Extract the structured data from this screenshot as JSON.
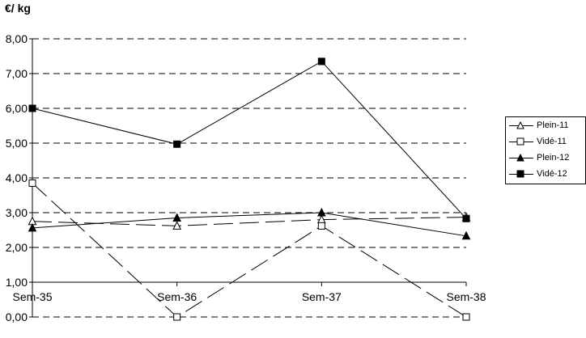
{
  "chart_data": {
    "type": "line",
    "ylabel": "€/ kg",
    "categories": [
      "Sem-35",
      "Sem-36",
      "Sem-37",
      "Sem-38"
    ],
    "ylim": [
      0,
      8
    ],
    "yticks": [
      "0,00",
      "1,00",
      "2,00",
      "3,00",
      "4,00",
      "5,00",
      "6,00",
      "7,00",
      "8,00"
    ],
    "x_axis_crosses_at": 1,
    "grid": true,
    "legend_position": "right",
    "series": [
      {
        "name": "Plein-11",
        "marker": "triangle-open",
        "dash": "long-dash",
        "values": [
          2.75,
          2.62,
          2.8,
          2.87
        ]
      },
      {
        "name": "Vidé-11",
        "marker": "square-open",
        "dash": "long-dash",
        "values": [
          3.85,
          0.0,
          2.62,
          0.0
        ]
      },
      {
        "name": "Plein-12",
        "marker": "triangle-filled",
        "dash": "solid",
        "values": [
          2.56,
          2.85,
          3.0,
          2.33
        ]
      },
      {
        "name": "Vidé-12",
        "marker": "square-filled",
        "dash": "solid",
        "values": [
          6.0,
          4.97,
          7.35,
          2.83
        ]
      }
    ]
  }
}
